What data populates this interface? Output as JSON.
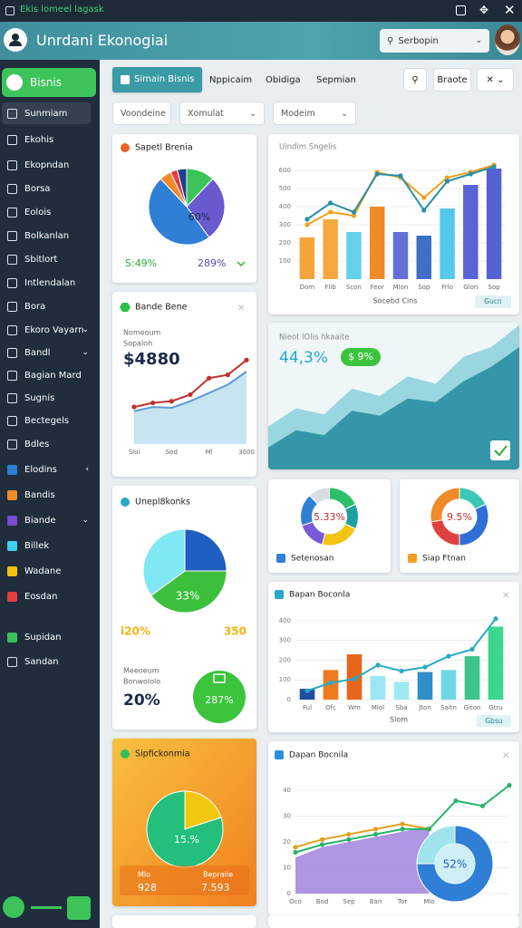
{
  "status_bar": {
    "title": "Ekis lomeel lagask"
  },
  "header": {
    "title": "Unrdani Ekonogiai",
    "search": "Serbopin"
  },
  "sidebar": {
    "items": [
      "Bisnis",
      "Sunmiam",
      "Ekohis",
      "Ekopndan",
      "Borsa",
      "Eolois",
      "Bolkanlan",
      "Sbitlort",
      "Intlendalan",
      "Bora",
      "Ekoro Vayarn",
      "Bandl",
      "Bagian Mard",
      "Sugnis",
      "Bectegels",
      "Bdles",
      "Elodins",
      "Bandis",
      "Biande",
      "Billek",
      "Wadane",
      "Eosdan",
      "Supidan",
      "Sandan"
    ]
  },
  "toolbar": {
    "tabs": [
      "Simain Bisnis",
      "Nppicaim",
      "Obidiga",
      "Sepmian"
    ],
    "button": "Braote",
    "filters": [
      "Voondeine",
      "Xomulat",
      "Modeim"
    ]
  },
  "cards": {
    "pie_card": {
      "title": "Sapetl Brenia",
      "center": "60%",
      "left_stat": "S:49%",
      "right_stat": "289%",
      "chart": {
        "type": "pie",
        "values": [
          12,
          28,
          48,
          5,
          3,
          4
        ],
        "colors": [
          "#3cc45a",
          "#6a5ad0",
          "#2f7fd6",
          "#f08a2a",
          "#e04040",
          "#1f3f8f"
        ]
      }
    },
    "line_card": {
      "title": "Bande Bene",
      "subtitle": [
        "Nomeoum",
        "Sopaloh"
      ],
      "amount": "$4880",
      "chart": {
        "type": "line",
        "categories": [
          "Slol",
          null,
          "Sod",
          null,
          "Ml",
          null,
          "3000"
        ],
        "ylim": [
          0,
          110
        ],
        "series": [
          {
            "type": "area",
            "color": "#bfe2f2",
            "values": [
              40,
              45,
              44,
              52,
              62,
              72,
              88
            ]
          },
          {
            "type": "line",
            "color": "#5b9bd5",
            "values": [
              40,
              45,
              44,
              52,
              62,
              72,
              88
            ]
          },
          {
            "type": "line",
            "color": "#c0302a",
            "dots": true,
            "values": [
              45,
              50,
              52,
              60,
              80,
              84,
              102
            ]
          }
        ]
      }
    },
    "split_card": {
      "title": "Unepl8konks",
      "center": "33%",
      "left_stat": "i20%",
      "right_stat": "350",
      "subtitle": [
        "Meeoeum",
        "Bonwololo"
      ],
      "amount": "20%",
      "badge": "287%",
      "chart": {
        "type": "pie",
        "values": [
          25,
          40,
          35
        ],
        "colors": [
          "#1f5fbf",
          "#3cbf3c",
          "#7fe8f4"
        ]
      }
    },
    "orange_card": {
      "title": "Sipfickonmia",
      "center": "15.%",
      "labels": [
        "Mlo",
        "Bepraile"
      ],
      "stats": [
        "928",
        "7.593"
      ],
      "chart": {
        "type": "pie",
        "values": [
          20,
          80
        ],
        "colors": [
          "#f2c80f",
          "#22c07a"
        ]
      }
    },
    "bar_card": {
      "title": "Uindim Sngelis",
      "xlabel": "Socebd Cins",
      "button": "Gucn",
      "chart": {
        "type": "bar",
        "categories": [
          "Dom",
          "Flib",
          "Scon",
          "Feor",
          "Mlon",
          "Sop",
          "Frlo",
          "Glon",
          "Sop"
        ],
        "ylim": [
          0,
          650
        ],
        "yticks": [
          100,
          200,
          300,
          400,
          500,
          600
        ],
        "grid": true,
        "series": [
          {
            "type": "bar",
            "colors": [
              "#f5a43a",
              "#f7a83c",
              "#63d0ec",
              "#f08a2a",
              "#6470d8",
              "#3f6fc6",
              "#56c8ec",
              "#5b63d6",
              "#5562d4"
            ],
            "values": [
              230,
              330,
              260,
              400,
              260,
              240,
              390,
              520,
              610
            ]
          },
          {
            "type": "line",
            "color": "#f0a020",
            "dots": true,
            "values": [
              300,
              370,
              350,
              590,
              560,
              450,
              560,
              590,
              630
            ]
          },
          {
            "type": "line",
            "color": "#2a8fa8",
            "dots": true,
            "values": [
              330,
              420,
              370,
              580,
              570,
              380,
              540,
              580,
              620
            ]
          }
        ]
      }
    },
    "area_card": {
      "title": "Nieot lOlis hkaaite",
      "stat": "44,3%",
      "badge": "$ 9%",
      "chart": {
        "type": "area",
        "ylim": [
          0,
          120
        ],
        "series": [
          {
            "type": "area",
            "color": "#8fd3dc",
            "values": [
              35,
              50,
              45,
              66,
              60,
              76,
              70,
              92,
              100,
              118
            ]
          },
          {
            "type": "area",
            "color": "#2a8fa3",
            "values": [
              18,
              32,
              28,
              48,
              44,
              58,
              55,
              72,
              84,
              100
            ]
          }
        ]
      }
    },
    "donut_a": {
      "center": "5.33%",
      "label": "Setenosan",
      "chart": {
        "type": "donut",
        "values": [
          18,
          14,
          22,
          16,
          18,
          12
        ],
        "colors": [
          "#2fbf6a",
          "#1f9f9f",
          "#f2c40f",
          "#7a5ad8",
          "#2f7fd6",
          "#d8dde2"
        ]
      }
    },
    "donut_b": {
      "center": "9.5%",
      "label": "Siap Ftnan",
      "chart": {
        "type": "donut",
        "values": [
          18,
          32,
          22,
          28
        ],
        "colors": [
          "#3cc8b4",
          "#2f6fd6",
          "#e04040",
          "#f08a2a"
        ]
      }
    },
    "combo_card": {
      "title": "Bapan Boconla",
      "xlabel": "Slom",
      "button": "Gbsu",
      "chart": {
        "type": "bar",
        "categories": [
          "Ful",
          "Ofc",
          "Wm",
          "Mlol",
          "Sba",
          "Jton",
          "Saitn",
          "Giton",
          "Gtru"
        ],
        "ylim": [
          0,
          450
        ],
        "yticks": [
          0,
          100,
          200,
          300,
          400
        ],
        "grid": true,
        "series": [
          {
            "type": "bar",
            "colors": [
              "#1e4fa0",
              "#f07a1e",
              "#e8661c",
              "#9ae6f4",
              "#9eeaf4",
              "#2f8fc8",
              "#6fd6e8",
              "#3cc48a",
              "#3dd68c"
            ],
            "values": [
              55,
              150,
              230,
              120,
              90,
              140,
              150,
              220,
              370
            ]
          },
          {
            "type": "line",
            "color": "#27a9c7",
            "dots": true,
            "values": [
              45,
              85,
              105,
              175,
              145,
              165,
              220,
              255,
              410
            ]
          }
        ]
      }
    },
    "mixed_card": {
      "title": "Dapan Bocnila",
      "center": "52%",
      "chart": {
        "type": "line",
        "categories": [
          "Oco",
          "Bod",
          "Sep",
          "Ban",
          "Tor",
          "Mlo",
          null,
          null,
          null
        ],
        "ylim": [
          0,
          45
        ],
        "yticks": [
          0,
          10,
          20,
          30,
          40
        ],
        "grid": true,
        "series": [
          {
            "type": "area",
            "color": "#a58be0",
            "values": [
              14,
              18,
              20,
              22,
              24,
              26,
              null,
              null,
              null
            ]
          },
          {
            "type": "line",
            "color": "#e0a020",
            "dots": true,
            "values": [
              18,
              21,
              23,
              25,
              27,
              25,
              null,
              null,
              null
            ]
          },
          {
            "type": "line",
            "color": "#27b46a",
            "dots": true,
            "values": [
              16,
              19,
              21,
              23,
              25,
              25,
              36,
              34,
              42
            ]
          }
        ]
      },
      "donut": {
        "type": "donut",
        "values": [
          75,
          25
        ],
        "colors": [
          "#2f7fd6",
          "#9fe4ec"
        ]
      }
    }
  }
}
